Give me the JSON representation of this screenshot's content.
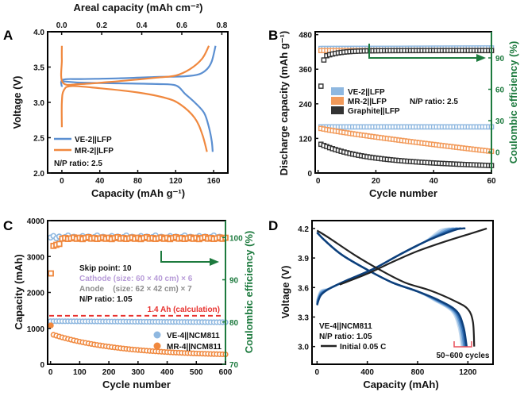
{
  "chart_data": [
    {
      "panel": "A",
      "type": "line",
      "xlabel": "Capacity (mAh g⁻¹)",
      "ylabel": "Voltage (V)",
      "x2label": "Areal capacity (mAh cm⁻²)",
      "xlim": [
        -15,
        175
      ],
      "ylim": [
        2.0,
        4.0
      ],
      "x2lim": [
        -0.07,
        0.83
      ],
      "xticks": [
        0,
        40,
        80,
        120,
        160
      ],
      "yticks": [
        2.0,
        2.5,
        3.0,
        3.5,
        4.0
      ],
      "x2ticks": [
        0.0,
        0.2,
        0.4,
        0.6,
        0.8
      ],
      "xtick_labels": [
        "0",
        "40",
        "80",
        "120",
        "160"
      ],
      "ytick_labels": [
        "2.0",
        "2.5",
        "3.0",
        "3.5",
        "4.0"
      ],
      "x2tick_labels": [
        "0.0",
        "0.2",
        "0.4",
        "0.6",
        "0.8"
      ],
      "annotation": "N/P ratio: 2.5",
      "legend_position": "bottom-left",
      "series": [
        {
          "name": "VE-2||LFP",
          "color": "#5b8fd1",
          "charge": [
            [
              0,
              3.22
            ],
            [
              1,
              3.32
            ],
            [
              20,
              3.33
            ],
            [
              60,
              3.34
            ],
            [
              100,
              3.36
            ],
            [
              130,
              3.37
            ],
            [
              145,
              3.4
            ],
            [
              153,
              3.47
            ],
            [
              158,
              3.58
            ],
            [
              162,
              3.8
            ]
          ],
          "discharge": [
            [
              0,
              3.3
            ],
            [
              20,
              3.28
            ],
            [
              60,
              3.27
            ],
            [
              100,
              3.26
            ],
            [
              120,
              3.24
            ],
            [
              130,
              3.12
            ],
            [
              140,
              3.0
            ],
            [
              150,
              2.85
            ],
            [
              155,
              2.65
            ],
            [
              158,
              2.45
            ],
            [
              159,
              2.3
            ]
          ]
        },
        {
          "name": "MR-2||LFP",
          "color": "#f0883e",
          "charge": [
            [
              0,
              3.8
            ],
            [
              0,
              3.6
            ],
            [
              1,
              3.28
            ],
            [
              20,
              3.26
            ],
            [
              60,
              3.3
            ],
            [
              100,
              3.35
            ],
            [
              120,
              3.38
            ],
            [
              135,
              3.47
            ],
            [
              148,
              3.62
            ],
            [
              155,
              3.8
            ]
          ],
          "discharge": [
            [
              0,
              2.65
            ],
            [
              0,
              3.0
            ],
            [
              2,
              3.17
            ],
            [
              10,
              3.23
            ],
            [
              40,
              3.2
            ],
            [
              80,
              3.14
            ],
            [
              110,
              3.06
            ],
            [
              125,
              2.97
            ],
            [
              140,
              2.78
            ],
            [
              148,
              2.55
            ],
            [
              153,
              2.3
            ]
          ]
        }
      ]
    },
    {
      "panel": "B",
      "type": "scatter",
      "xlabel": "Cycle number",
      "ylabel": "Discharge capacity (mAh g⁻¹)",
      "y2label": "Coulombic efficiency (%)",
      "xlim": [
        -1,
        60
      ],
      "ylim": [
        0,
        490
      ],
      "y2lim": [
        -20,
        115
      ],
      "xticks": [
        0,
        20,
        40,
        60
      ],
      "yticks": [
        0,
        120,
        240,
        360,
        480
      ],
      "y2ticks": [
        0,
        30,
        60,
        90
      ],
      "xtick_labels": [
        "0",
        "20",
        "40",
        "60"
      ],
      "ytick_labels": [
        "0",
        "120",
        "240",
        "360",
        "480"
      ],
      "y2tick_labels": [
        "0",
        "30",
        "60",
        "90"
      ],
      "annotation": "N/P ratio: 2.5",
      "legend_position": "center-left",
      "series": [
        {
          "name": "VE-2||LFP",
          "color": "#8fb8e0",
          "capacity_start": 160,
          "capacity_end": 160,
          "ce_start": 99,
          "ce_end": 99.5
        },
        {
          "name": "MR-2||LFP",
          "color": "#f29a5a",
          "capacity_start": 157,
          "capacity_end": 75,
          "ce_start": 97,
          "ce_end": 97
        },
        {
          "name": "Graphite||LFP",
          "color": "#333333",
          "capacity_start": 100,
          "capacity_end": 25,
          "ce_first": [
            63,
            88
          ],
          "ce_end": 97
        }
      ]
    },
    {
      "panel": "C",
      "type": "scatter",
      "xlabel": "Cycle number",
      "ylabel": "Capacity (mAh)",
      "y2label": "Coulombic efficiency (%)",
      "xlim": [
        -10,
        600
      ],
      "ylim": [
        0,
        4000
      ],
      "y2lim": [
        70,
        104
      ],
      "xticks": [
        0,
        100,
        200,
        300,
        400,
        500,
        600
      ],
      "yticks": [
        0,
        1000,
        2000,
        3000,
        4000
      ],
      "y2ticks": [
        70,
        80,
        90,
        100
      ],
      "xtick_labels": [
        "0",
        "100",
        "200",
        "300",
        "400",
        "500",
        "600"
      ],
      "ytick_labels": [
        "0",
        "1000",
        "2000",
        "3000",
        "4000"
      ],
      "y2tick_labels": [
        "70",
        "80",
        "90",
        "100"
      ],
      "reference_line": {
        "value": 1350,
        "label": "1.4 Ah (calculation)",
        "color": "#e8312e"
      },
      "annotations": [
        {
          "text": "Skip point: 10",
          "color": "#111111"
        },
        {
          "text": "Cathode (size: 60 × 40 cm) × 6",
          "color": "#b79bd8"
        },
        {
          "text": "Anode    (size: 62 × 42 cm) × 7",
          "color": "#8c8c8c"
        },
        {
          "text": "N/P ratio: 1.05",
          "color": "#111111"
        }
      ],
      "legend_position": "bottom-right",
      "series": [
        {
          "name": "VE-4||NCM811",
          "color": "#8fb8e0",
          "capacity_start": 1200,
          "capacity_end": 1170,
          "ce": 100
        },
        {
          "name": "MR-4||NCM811",
          "color": "#f0883e",
          "capacity_first": 1080,
          "capacity_start": 820,
          "capacity_end": 230,
          "ce_first": 91.5,
          "ce": 99.8
        }
      ]
    },
    {
      "panel": "D",
      "type": "line",
      "xlabel": "Capacity (mAh)",
      "ylabel": "Voltage (V)",
      "xlim": [
        -40,
        1400
      ],
      "ylim": [
        2.82,
        4.28
      ],
      "xticks": [
        0,
        400,
        800,
        1200
      ],
      "yticks": [
        3.0,
        3.3,
        3.6,
        3.9,
        4.2
      ],
      "xtick_labels": [
        "0",
        "400",
        "800",
        "1200"
      ],
      "ytick_labels": [
        "3.0",
        "3.3",
        "3.6",
        "3.9",
        "4.2"
      ],
      "annotations": [
        {
          "text": "VE-4||NCM811"
        },
        {
          "text": "N/P ratio: 1.05"
        },
        {
          "text": "50~600 cycles",
          "bracket_color": "#e8505b"
        }
      ],
      "legend_position": "bottom-left",
      "series": [
        {
          "name": "Initial 0.05 C",
          "color": "#222222",
          "charge": [
            [
              180,
              3.63
            ],
            [
              400,
              3.74
            ],
            [
              600,
              3.86
            ],
            [
              800,
              3.97
            ],
            [
              1000,
              4.06
            ],
            [
              1200,
              4.14
            ],
            [
              1350,
              4.2
            ]
          ],
          "discharge": [
            [
              0,
              4.18
            ],
            [
              100,
              4.1
            ],
            [
              300,
              3.93
            ],
            [
              500,
              3.78
            ],
            [
              700,
              3.65
            ],
            [
              900,
              3.57
            ],
            [
              1100,
              3.46
            ],
            [
              1200,
              3.38
            ],
            [
              1240,
              3.25
            ],
            [
              1250,
              3.0
            ]
          ]
        },
        {
          "name": "50~600 cycles",
          "colors": [
            "#0d3f7a",
            "#2a66ad",
            "#5b92cc",
            "#8fb8e0",
            "#c4daf0"
          ],
          "charge_end": [
            1180,
            1150,
            1120,
            1090,
            1060
          ],
          "discharge_end": [
            1190,
            1180,
            1170,
            1160,
            1150
          ]
        }
      ]
    }
  ],
  "panels": {
    "A": {
      "letter": "A"
    },
    "B": {
      "letter": "B"
    },
    "C": {
      "letter": "C"
    },
    "D": {
      "letter": "D"
    }
  }
}
